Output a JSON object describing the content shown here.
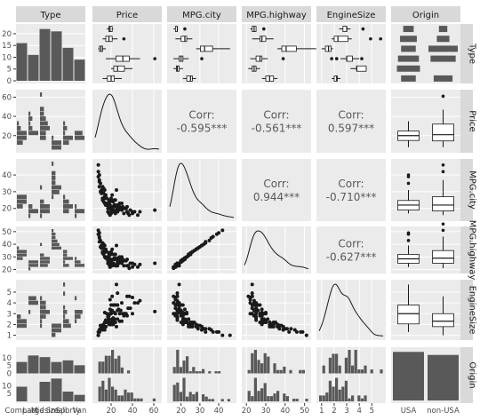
{
  "chart_data": {
    "type": "scatter-matrix",
    "variables": [
      "Type",
      "Price",
      "MPG.city",
      "MPG.highway",
      "EngineSize",
      "Origin"
    ],
    "type_categories": [
      "Compact",
      "Large",
      "Midsize",
      "Small",
      "Sporty",
      "Van"
    ],
    "origin_categories": [
      "USA",
      "non-USA"
    ],
    "type_counts": [
      16,
      11,
      22,
      21,
      14,
      9
    ],
    "type_counts_by_origin": {
      "USA": [
        7,
        11,
        10,
        7,
        8,
        5
      ],
      "non-USA": [
        9,
        0,
        12,
        14,
        6,
        4
      ]
    },
    "origin_counts": [
      48,
      45
    ],
    "correlations": [
      {
        "row": "Price",
        "col": "MPG.city",
        "label": "Corr:",
        "value": "-0.595***"
      },
      {
        "row": "Price",
        "col": "MPG.highway",
        "label": "Corr:",
        "value": "-0.561***"
      },
      {
        "row": "Price",
        "col": "EngineSize",
        "label": "Corr:",
        "value": "0.597***"
      },
      {
        "row": "MPG.city",
        "col": "MPG.highway",
        "label": "Corr:",
        "value": "0.944***"
      },
      {
        "row": "MPG.city",
        "col": "EngineSize",
        "label": "Corr:",
        "value": "-0.710***"
      },
      {
        "row": "MPG.highway",
        "col": "EngineSize",
        "label": "Corr:",
        "value": "-0.627***"
      }
    ],
    "axes": {
      "Type_count": {
        "range": [
          0,
          23
        ],
        "ticks": [
          0,
          5,
          10,
          15,
          20
        ]
      },
      "Price": {
        "range": [
          5,
          65
        ],
        "ticks_x": [
          20,
          40,
          60
        ],
        "ticks_y": [
          20,
          40,
          60
        ]
      },
      "MPG.city": {
        "range": [
          14,
          48
        ],
        "ticks_x": [
          20,
          30,
          40
        ],
        "ticks_y": [
          20,
          30,
          40
        ]
      },
      "MPG.highway": {
        "range": [
          19,
          52
        ],
        "ticks_x": [
          20,
          30,
          40,
          50
        ],
        "ticks_y": [
          20,
          30,
          40,
          50
        ]
      },
      "EngineSize": {
        "range": [
          0.8,
          5.9
        ],
        "ticks_x": [
          1,
          2,
          3,
          4,
          5
        ],
        "ticks_y": [
          1,
          2,
          3,
          4,
          5
        ]
      },
      "Origin_count": {
        "range": [
          0,
          15
        ],
        "ticks": [
          0,
          5,
          10
        ]
      }
    },
    "cars": [
      [
        2,
        25,
        31,
        0,
        1.8
      ],
      [
        0,
        20,
        25,
        0,
        2.2
      ],
      [
        0,
        21,
        28,
        1,
        2.0
      ],
      [
        5,
        16,
        22,
        0,
        3.0
      ],
      [
        1,
        35,
        18,
        0,
        4.6
      ],
      [
        0,
        23,
        25,
        1,
        2.2
      ],
      [
        3,
        9,
        40,
        0,
        1.3
      ],
      [
        2,
        45,
        16,
        1,
        4.0
      ],
      [
        4,
        19,
        22,
        0,
        3.4
      ],
      [
        1,
        40,
        17,
        1,
        4.5
      ],
      [
        3,
        13,
        32,
        1,
        1.6
      ],
      [
        2,
        28,
        23,
        0,
        3.0
      ],
      [
        0,
        16,
        26,
        0,
        2.2
      ],
      [
        4,
        15,
        26,
        1,
        1.8
      ],
      [
        5,
        22,
        18,
        1,
        2.6
      ],
      [
        2,
        38,
        19,
        1,
        3.5
      ],
      [
        3,
        10,
        35,
        0,
        1.6
      ],
      [
        1,
        22,
        19,
        0,
        3.8
      ],
      [
        0,
        30,
        23,
        1,
        2.3
      ],
      [
        2,
        18,
        24,
        0,
        2.5
      ],
      [
        4,
        25,
        19,
        0,
        5.7
      ],
      [
        3,
        8,
        42,
        1,
        1.0
      ],
      [
        1,
        26,
        20,
        0,
        3.8
      ],
      [
        5,
        19,
        17,
        0,
        4.3
      ],
      [
        2,
        24,
        22,
        1,
        3.0
      ],
      [
        0,
        13,
        26,
        0,
        2.0
      ],
      [
        3,
        12,
        31,
        1,
        1.5
      ],
      [
        4,
        32,
        17,
        1,
        3.0
      ],
      [
        2,
        61,
        19,
        1,
        3.2
      ],
      [
        1,
        20,
        19,
        0,
        3.3
      ],
      [
        0,
        18,
        23,
        1,
        2.2
      ],
      [
        3,
        11,
        29,
        0,
        1.9
      ],
      [
        2,
        34,
        20,
        1,
        3.0
      ],
      [
        5,
        17,
        18,
        1,
        2.7
      ],
      [
        4,
        14,
        23,
        0,
        3.1
      ],
      [
        0,
        15,
        23,
        0,
        2.4
      ],
      [
        2,
        47,
        18,
        1,
        4.2
      ],
      [
        1,
        37,
        16,
        1,
        4.6
      ],
      [
        3,
        8,
        46,
        1,
        1.0
      ],
      [
        2,
        26,
        19,
        0,
        3.3
      ],
      [
        4,
        18,
        22,
        1,
        2.3
      ],
      [
        0,
        14,
        27,
        0,
        2.2
      ],
      [
        3,
        12,
        33,
        1,
        1.6
      ],
      [
        2,
        35,
        21,
        1,
        2.8
      ],
      [
        5,
        20,
        17,
        0,
        3.0
      ],
      [
        1,
        23,
        18,
        0,
        3.8
      ],
      [
        0,
        23,
        22,
        1,
        2.5
      ],
      [
        3,
        15,
        28,
        1,
        1.8
      ],
      [
        2,
        29,
        20,
        0,
        3.3
      ],
      [
        4,
        12,
        25,
        1,
        1.8
      ],
      [
        0,
        19,
        24,
        0,
        2.0
      ],
      [
        3,
        9,
        36,
        1,
        1.5
      ],
      [
        2,
        40,
        18,
        1,
        3.0
      ],
      [
        1,
        21,
        18,
        0,
        4.6
      ],
      [
        5,
        19,
        16,
        1,
        3.0
      ],
      [
        0,
        24,
        25,
        1,
        2.2
      ],
      [
        3,
        10,
        30,
        0,
        1.9
      ],
      [
        4,
        16,
        22,
        1,
        2.3
      ],
      [
        2,
        31,
        21,
        1,
        3.0
      ],
      [
        0,
        17,
        23,
        0,
        2.2
      ],
      [
        3,
        11,
        29,
        1,
        1.6
      ],
      [
        2,
        20,
        20,
        0,
        3.8
      ],
      [
        1,
        30,
        19,
        0,
        4.0
      ],
      [
        4,
        26,
        18,
        0,
        4.9
      ],
      [
        5,
        22,
        18,
        1,
        2.4
      ],
      [
        0,
        26,
        22,
        1,
        2.5
      ],
      [
        3,
        14,
        31,
        1,
        1.5
      ],
      [
        2,
        33,
        20,
        1,
        3.0
      ],
      [
        4,
        13,
        24,
        0,
        1.8
      ],
      [
        2,
        15,
        22,
        0,
        2.2
      ],
      [
        0,
        12,
        26,
        1,
        1.8
      ],
      [
        3,
        9,
        33,
        1,
        1.3
      ],
      [
        2,
        27,
        19,
        0,
        3.4
      ],
      [
        1,
        24,
        17,
        0,
        3.8
      ],
      [
        5,
        21,
        18,
        0,
        3.3
      ],
      [
        0,
        28,
        21,
        1,
        2.3
      ],
      [
        3,
        13,
        29,
        1,
        1.9
      ],
      [
        4,
        21,
        21,
        1,
        2.5
      ],
      [
        2,
        36,
        17,
        1,
        3.5
      ],
      [
        0,
        22,
        24,
        0,
        2.0
      ],
      [
        3,
        8,
        39,
        0,
        1.3
      ],
      [
        2,
        19,
        21,
        0,
        3.0
      ],
      [
        4,
        17,
        20,
        1,
        2.2
      ],
      [
        0,
        18,
        25,
        1,
        2.0
      ],
      [
        3,
        11,
        31,
        0,
        1.8
      ],
      [
        2,
        42,
        18,
        1,
        4.0
      ],
      [
        1,
        26,
        21,
        0,
        3.8
      ],
      [
        5,
        18,
        17,
        1,
        2.8
      ],
      [
        0,
        20,
        26,
        1,
        2.0
      ],
      [
        3,
        9,
        37,
        1,
        1.3
      ],
      [
        2,
        23,
        21,
        0,
        3.1
      ],
      [
        4,
        19,
        21,
        1,
        2.0
      ],
      [
        2,
        32,
        20,
        1,
        2.8
      ]
    ]
  }
}
